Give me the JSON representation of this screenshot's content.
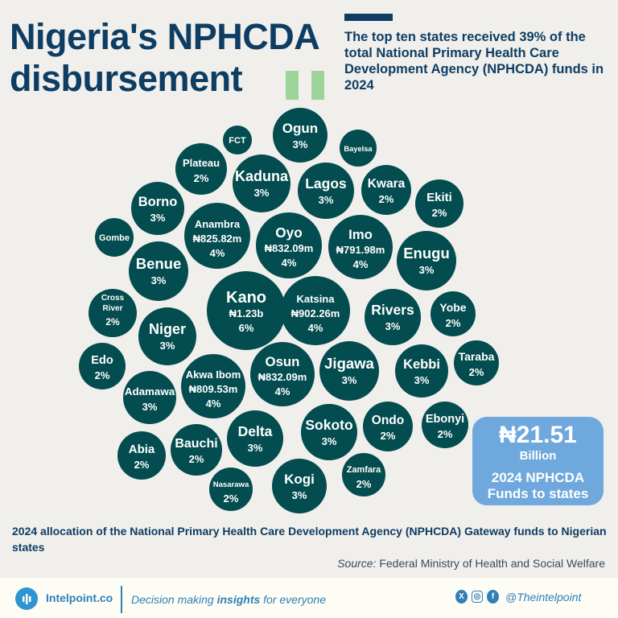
{
  "header": {
    "title_line1": "Nigeria's NPHCDA",
    "title_line2": "disbursement",
    "subtitle": "The top ten states received 39% of the total National Primary Health Care Development Agency (NPHCDA) funds in 2024"
  },
  "colors": {
    "bubble": "#034c4f",
    "total_box": "#6fa8dc",
    "title": "#0e3d63",
    "accent_green": "#9dd49a"
  },
  "chart_data": {
    "type": "bubble",
    "title": "2024 allocation of the National Primary Health Care Development Agency (NPHCDA) Gateway funds to Nigerian states",
    "unit": "percent of total",
    "states": [
      {
        "name": "Ogun",
        "pct": "3%",
        "value": 3
      },
      {
        "name": "FCT",
        "pct": "",
        "value": 1
      },
      {
        "name": "Bayelsa",
        "pct": "",
        "value": 1
      },
      {
        "name": "Plateau",
        "pct": "2%",
        "value": 2
      },
      {
        "name": "Kaduna",
        "pct": "3%",
        "value": 3
      },
      {
        "name": "Lagos",
        "pct": "3%",
        "value": 3
      },
      {
        "name": "Kwara",
        "pct": "2%",
        "value": 2
      },
      {
        "name": "Ekiti",
        "pct": "2%",
        "value": 2
      },
      {
        "name": "Borno",
        "pct": "3%",
        "value": 3
      },
      {
        "name": "Gombe",
        "pct": "",
        "value": 1
      },
      {
        "name": "Anambra",
        "amount": "₦825.82m",
        "pct": "4%",
        "value": 4
      },
      {
        "name": "Oyo",
        "amount": "₦832.09m",
        "pct": "4%",
        "value": 4
      },
      {
        "name": "Imo",
        "amount": "₦791.98m",
        "pct": "4%",
        "value": 4
      },
      {
        "name": "Enugu",
        "pct": "3%",
        "value": 3
      },
      {
        "name": "Benue",
        "pct": "3%",
        "value": 3
      },
      {
        "name": "Cross River",
        "pct": "2%",
        "value": 2
      },
      {
        "name": "Kano",
        "amount": "₦1.23b",
        "pct": "6%",
        "value": 6
      },
      {
        "name": "Katsina",
        "amount": "₦902.26m",
        "pct": "4%",
        "value": 4
      },
      {
        "name": "Rivers",
        "pct": "3%",
        "value": 3
      },
      {
        "name": "Yobe",
        "pct": "2%",
        "value": 2
      },
      {
        "name": "Niger",
        "pct": "3%",
        "value": 3
      },
      {
        "name": "Edo",
        "pct": "2%",
        "value": 2
      },
      {
        "name": "Taraba",
        "pct": "2%",
        "value": 2
      },
      {
        "name": "Jigawa",
        "pct": "3%",
        "value": 3
      },
      {
        "name": "Kebbi",
        "pct": "3%",
        "value": 3
      },
      {
        "name": "Osun",
        "amount": "₦832.09m",
        "pct": "4%",
        "value": 4
      },
      {
        "name": "Akwa Ibom",
        "amount": "₦809.53m",
        "pct": "4%",
        "value": 4
      },
      {
        "name": "Adamawa",
        "pct": "3%",
        "value": 3
      },
      {
        "name": "Sokoto",
        "pct": "3%",
        "value": 3
      },
      {
        "name": "Ondo",
        "pct": "2%",
        "value": 2
      },
      {
        "name": "Ebonyi",
        "pct": "2%",
        "value": 2
      },
      {
        "name": "Delta",
        "pct": "3%",
        "value": 3
      },
      {
        "name": "Bauchi",
        "pct": "2%",
        "value": 2
      },
      {
        "name": "Abia",
        "pct": "2%",
        "value": 2
      },
      {
        "name": "Zamfara",
        "pct": "2%",
        "value": 2
      },
      {
        "name": "Nasarawa",
        "pct": "2%",
        "value": 2
      },
      {
        "name": "Kogi",
        "pct": "3%",
        "value": 3
      }
    ]
  },
  "total": {
    "amount": "₦21.51",
    "unit": "Billion",
    "label_line1": "2024 NPHCDA",
    "label_line2": "Funds to states"
  },
  "caption": "2024 allocation of the National Primary Health Care Development Agency (NPHCDA) Gateway funds to Nigerian states",
  "source": {
    "label": "Source:",
    "text": "Federal Ministry of Health and Social Welfare"
  },
  "footer": {
    "brand": "Intelpoint.co",
    "tagline_pre": "Decision making ",
    "tagline_bold": "insights",
    "tagline_post": " for everyone",
    "handle": "@Theintelpoint",
    "x_icon": "X",
    "ig_icon": "◎",
    "fb_icon": "f"
  }
}
